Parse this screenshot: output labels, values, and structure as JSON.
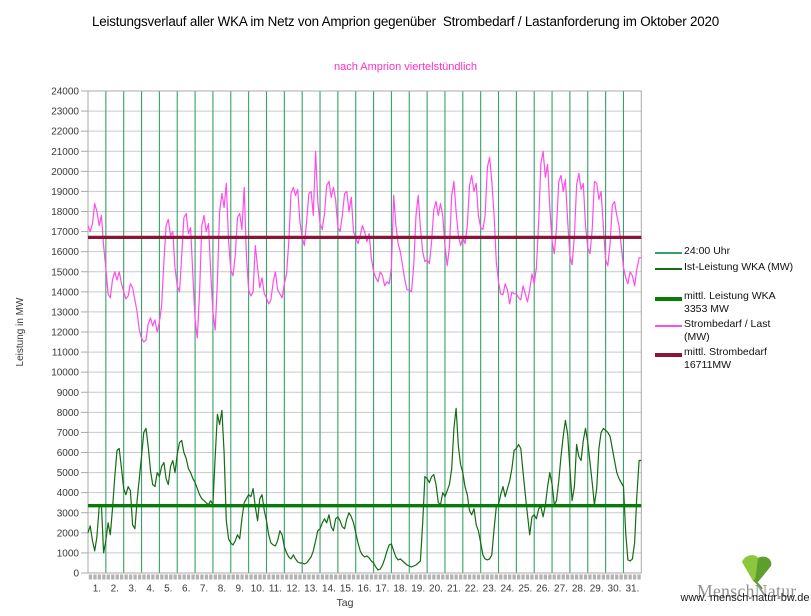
{
  "header": {
    "title": "Leistungsverlauf aller WKA im Netz von Amprion gegenüber  Strombedarf / Lastanforderung im Oktober 2020",
    "subtitle": "nach Amprion viertelstündlich"
  },
  "axes": {
    "y_title": "Leistung in MW",
    "x_title": "Tag"
  },
  "legend": {
    "items": [
      {
        "label": "24:00 Uhr",
        "color": "#37a169",
        "thick": false
      },
      {
        "label": "Ist-Leistung WKA (MW)",
        "color": "#146c14",
        "thick": false
      },
      {
        "label": "mittl. Leistung WKA 3353 MW",
        "color": "#067d06",
        "thick": true
      },
      {
        "label": "Strombedarf / Last (MW)",
        "color": "#ff4deb",
        "thick": false
      },
      {
        "label": "mittl. Strombedarf 16711MW",
        "color": "#8b1535",
        "thick": true
      }
    ]
  },
  "logo": {
    "brand": "MenschNatur",
    "url": "www. mensch-natur-bw.de",
    "leaf_color_light": "#8dc63f",
    "leaf_color_dark": "#5e9e2e"
  },
  "chart_data": {
    "type": "line",
    "title": "Leistungsverlauf aller WKA im Netz von Amprion gegenüber Strombedarf / Lastanforderung im Oktober 2020",
    "subtitle": "nach Amprion viertelstündlich",
    "xlabel": "Tag",
    "ylabel": "Leistung in MW",
    "ylim": [
      0,
      24000
    ],
    "y_step": 1000,
    "x_days": 31,
    "samples_per_day": 8,
    "grid": true,
    "day_boundary_lines_label": "24:00 Uhr",
    "day_line_color": "#37a169",
    "y_ticks": [
      0,
      1000,
      2000,
      3000,
      4000,
      5000,
      6000,
      7000,
      8000,
      9000,
      10000,
      11000,
      12000,
      13000,
      14000,
      15000,
      16000,
      17000,
      18000,
      19000,
      20000,
      21000,
      22000,
      23000,
      24000
    ],
    "x_ticks": [
      "1.",
      "2.",
      "3.",
      "4.",
      "5.",
      "6.",
      "7.",
      "8.",
      "9.",
      "10.",
      "11.",
      "12.",
      "13.",
      "14.",
      "15.",
      "16.",
      "17.",
      "18.",
      "19.",
      "20.",
      "21.",
      "22.",
      "23.",
      "24.",
      "25.",
      "26.",
      "27.",
      "28.",
      "29.",
      "30.",
      "31."
    ],
    "series": [
      {
        "id": "strombedarf-last",
        "name": "Strombedarf / Last (MW)",
        "color": "#ff4deb",
        "width": 1.2,
        "values": [
          17300,
          17000,
          17400,
          18400,
          18000,
          17300,
          17800,
          16300,
          15200,
          13900,
          13700,
          14600,
          15000,
          14600,
          15000,
          14400,
          14000,
          13650,
          13800,
          14400,
          14200,
          13600,
          13000,
          12100,
          11700,
          11500,
          11600,
          12400,
          12700,
          12300,
          12600,
          12000,
          12500,
          13300,
          15500,
          17300,
          17600,
          16800,
          17000,
          15200,
          14300,
          14000,
          15800,
          17700,
          17900,
          16900,
          17200,
          14800,
          12600,
          11700,
          14000,
          17300,
          17800,
          17000,
          17400,
          15000,
          13000,
          12100,
          14500,
          18000,
          18900,
          18200,
          19400,
          16500,
          15100,
          14800,
          15800,
          17700,
          17900,
          17100,
          19200,
          15800,
          14100,
          13800,
          14000,
          16300,
          15200,
          14200,
          14700,
          13900,
          13700,
          13400,
          13600,
          14500,
          15000,
          14100,
          13900,
          13700,
          14400,
          14900,
          16500,
          18900,
          19200,
          18800,
          19100,
          17500,
          16700,
          16300,
          17500,
          18900,
          19000,
          17800,
          21000,
          18500,
          17400,
          17100,
          17900,
          19300,
          19500,
          18700,
          19200,
          18600,
          17200,
          17000,
          17800,
          18900,
          19000,
          18000,
          18700,
          17000,
          16700,
          16400,
          16800,
          17300,
          17000,
          16500,
          16900,
          15700,
          15000,
          14700,
          14500,
          15000,
          14800,
          14300,
          14500,
          14400,
          15200,
          18800,
          17300,
          16400,
          16000,
          15300,
          14600,
          14100,
          14100,
          14000,
          15300,
          17800,
          18800,
          17200,
          16000,
          15500,
          15600,
          15400,
          16500,
          18100,
          18500,
          17800,
          18400,
          17800,
          16300,
          15300,
          16200,
          18800,
          19500,
          18000,
          16800,
          16300,
          16700,
          16400,
          17300,
          19300,
          19800,
          19000,
          19400,
          17800,
          17200,
          17100,
          17800,
          20200,
          20700,
          19500,
          17800,
          15500,
          14500,
          13900,
          13850,
          14400,
          14100,
          13400,
          14000,
          13900,
          13900,
          13700,
          13600,
          14300,
          13900,
          13500,
          14100,
          14900,
          14400,
          15200,
          17500,
          20400,
          21000,
          19700,
          20350,
          18200,
          16500,
          15900,
          17200,
          19500,
          19800,
          19000,
          19600,
          17500,
          15800,
          15350,
          16800,
          19300,
          19900,
          19100,
          19400,
          17300,
          16200,
          15900,
          17100,
          19500,
          19400,
          18600,
          19000,
          17200,
          15600,
          15300,
          16400,
          18300,
          18500,
          17800,
          17300,
          16300,
          15200,
          14700,
          14400,
          15000,
          14800,
          14300,
          15100,
          15700
        ]
      },
      {
        "id": "ist-leistung-wka",
        "name": "Ist-Leistung WKA (MW)",
        "color": "#146c14",
        "width": 1.2,
        "values": [
          2000,
          2350,
          1600,
          1100,
          1800,
          3300,
          3400,
          1000,
          1600,
          2500,
          1900,
          3200,
          4800,
          6100,
          6200,
          5200,
          4200,
          3900,
          4300,
          4100,
          2400,
          2200,
          3600,
          4700,
          5800,
          7000,
          7200,
          6300,
          5100,
          4400,
          4300,
          5000,
          4800,
          5300,
          5500,
          4700,
          4400,
          5300,
          5600,
          5000,
          5900,
          6500,
          6600,
          6000,
          5700,
          5200,
          5000,
          4700,
          4500,
          4200,
          3900,
          3700,
          3600,
          3500,
          3400,
          3600,
          3400,
          5800,
          7900,
          7400,
          8100,
          6000,
          2600,
          1700,
          1500,
          1400,
          1600,
          1900,
          1700,
          2700,
          3500,
          3700,
          3900,
          3800,
          4200,
          3300,
          2600,
          3700,
          3900,
          3100,
          2600,
          1900,
          1500,
          1400,
          1350,
          1600,
          2100,
          1900,
          1300,
          1000,
          800,
          700,
          900,
          700,
          550,
          500,
          500,
          450,
          500,
          650,
          800,
          1100,
          1600,
          2100,
          2200,
          2500,
          2700,
          2500,
          2900,
          2300,
          2100,
          2700,
          2800,
          2600,
          2300,
          2200,
          2700,
          3000,
          2800,
          2500,
          2000,
          1500,
          1100,
          900,
          800,
          850,
          750,
          600,
          500,
          300,
          150,
          200,
          400,
          700,
          1100,
          1400,
          1450,
          1100,
          800,
          650,
          700,
          600,
          500,
          400,
          350,
          300,
          350,
          400,
          500,
          600,
          2500,
          4800,
          4700,
          4500,
          4800,
          4900,
          4400,
          3500,
          3400,
          4000,
          3800,
          4100,
          4400,
          5200,
          7200,
          8200,
          6300,
          5400,
          5000,
          4300,
          3900,
          3100,
          2900,
          3200,
          2400,
          2100,
          1500,
          900,
          700,
          650,
          700,
          900,
          2200,
          3300,
          3400,
          3900,
          4300,
          3800,
          4200,
          4600,
          5200,
          6100,
          6200,
          6400,
          6200,
          5000,
          3900,
          2900,
          1900,
          2800,
          2900,
          2700,
          3200,
          3300,
          2800,
          3400,
          4300,
          5000,
          4400,
          3400,
          3600,
          4600,
          5800,
          6800,
          7600,
          6900,
          5200,
          3600,
          4300,
          6400,
          5800,
          5600,
          6600,
          7200,
          6500,
          5500,
          4500,
          3400,
          4200,
          6200,
          7000,
          7200,
          7100,
          7000,
          6800,
          6200,
          5600,
          5000,
          4700,
          4500,
          4300,
          2000,
          650,
          600,
          700,
          1500,
          3800,
          5600
        ]
      }
    ],
    "mean_lines": [
      {
        "id": "mittl-strombedarf",
        "name": "mittl. Strombedarf",
        "value": 16711,
        "color": "#8b1535",
        "width": 3.2
      },
      {
        "id": "mittl-leistung-wka",
        "name": "mittl. Leistung WKA",
        "value": 3353,
        "color": "#067d06",
        "width": 3.4
      }
    ]
  }
}
